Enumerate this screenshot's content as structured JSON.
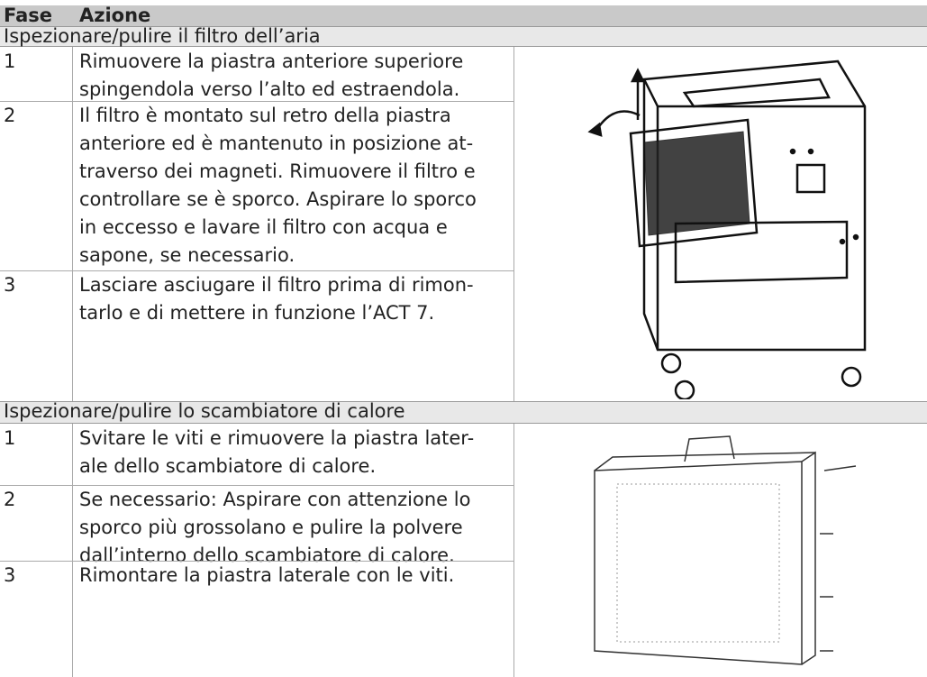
{
  "header": {
    "fase": "Fase",
    "azione": "Azione"
  },
  "sections": [
    {
      "title": "Ispezionare/pulire il filtro dell’aria",
      "steps": [
        {
          "n": "1",
          "lines": [
            "Rimuovere la piastra anteriore superiore",
            "spingendola verso l’alto ed estraendola."
          ]
        },
        {
          "n": "2",
          "lines": [
            "Il filtro è montato sul retro della piastra",
            "anteriore ed è mantenuto in posizione at-",
            "traverso dei magneti. Rimuovere il filtro e",
            "controllare se è sporco. Aspirare lo sporco",
            "in eccesso e lavare il filtro con acqua e",
            "sapone, se necessario."
          ]
        },
        {
          "n": "3",
          "lines": [
            "Lasciare asciugare il filtro prima di rimon-",
            "tarlo e di mettere in funzione l’ACT 7."
          ]
        }
      ]
    },
    {
      "title": "Ispezionare/pulire lo scambiatore di calore",
      "steps": [
        {
          "n": "1",
          "lines": [
            "Svitare le viti e rimuovere la piastra later-",
            "ale dello scambiatore di calore."
          ]
        },
        {
          "n": "2",
          "lines": [
            "Se necessario: Aspirare con attenzione lo",
            "sporco più grossolano e pulire la polvere",
            "dall’interno dello scambiatore di calore."
          ]
        },
        {
          "n": "3",
          "lines": [
            "Rimontare la piastra laterale con le viti."
          ]
        }
      ]
    }
  ]
}
